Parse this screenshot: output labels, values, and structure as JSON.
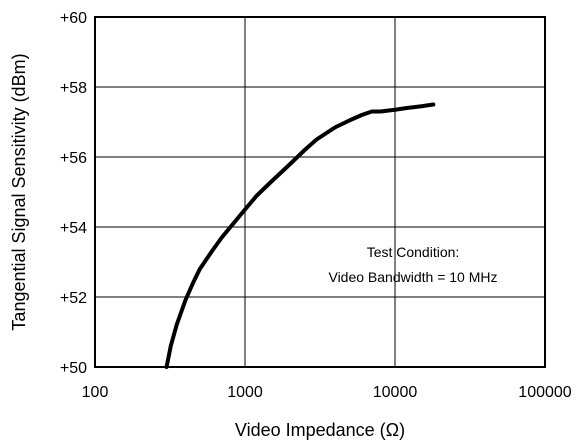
{
  "chart_data": {
    "type": "line",
    "title": "",
    "xlabel": "Video Impedance (Ω)",
    "ylabel": "Tangential Signal Sensitivity (dBm)",
    "x_scale": "log",
    "xlim": [
      100,
      100000
    ],
    "ylim": [
      50,
      60
    ],
    "x_ticks": [
      100,
      1000,
      10000,
      100000
    ],
    "x_tick_labels": [
      "100",
      "1000",
      "10000",
      "100000"
    ],
    "y_ticks": [
      50,
      52,
      54,
      56,
      58,
      60
    ],
    "y_tick_labels": [
      "+50",
      "+52",
      "+54",
      "+56",
      "+58",
      "+60"
    ],
    "grid": true,
    "annotations": [
      "Test Condition:",
      "Video Bandwidth = 10 MHz"
    ],
    "series": [
      {
        "color": "#000000",
        "x": [
          300,
          320,
          350,
          400,
          450,
          500,
          600,
          700,
          800,
          1000,
          1200,
          1500,
          2000,
          2500,
          3000,
          4000,
          5000,
          6000,
          7000,
          8000,
          10000,
          12000,
          15000,
          18000
        ],
        "y": [
          50.0,
          50.6,
          51.2,
          51.9,
          52.4,
          52.8,
          53.3,
          53.7,
          54.0,
          54.5,
          54.9,
          55.3,
          55.8,
          56.2,
          56.5,
          56.85,
          57.05,
          57.2,
          57.3,
          57.3,
          57.35,
          57.4,
          57.45,
          57.5
        ]
      }
    ]
  }
}
